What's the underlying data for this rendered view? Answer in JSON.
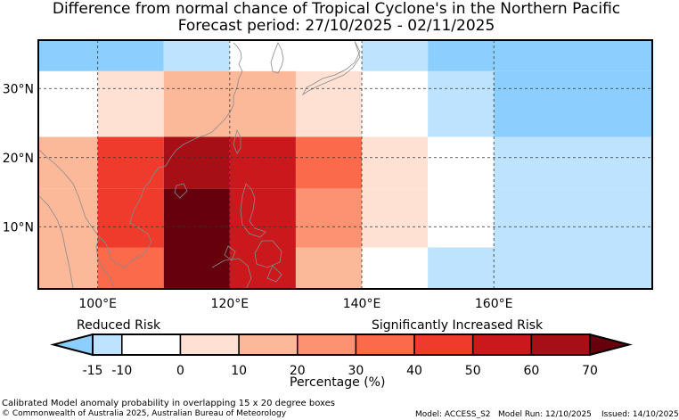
{
  "title": {
    "line1": "Difference from normal chance of Tropical Cyclone's in the Northern Pacific",
    "line2": "Forecast period: 27/10/2025 - 02/11/2025"
  },
  "map": {
    "lon_range": [
      91,
      184
    ],
    "lat_range": [
      1,
      37
    ],
    "lon_ticks": [
      {
        "value": 100,
        "label": "100°E"
      },
      {
        "value": 120,
        "label": "120°E"
      },
      {
        "value": 140,
        "label": "140°E"
      },
      {
        "value": 160,
        "label": "160°E"
      }
    ],
    "lat_ticks": [
      {
        "value": 10,
        "label": "10°N"
      },
      {
        "value": 20,
        "label": "20°N"
      },
      {
        "value": 30,
        "label": "30°N"
      }
    ],
    "grid_lines": "dashed",
    "cells": [
      {
        "lon0": 91,
        "lon1": 110,
        "lat0": 32.5,
        "lat1": 37,
        "cls": 0
      },
      {
        "lon0": 110,
        "lon1": 120,
        "lat0": 32.5,
        "lat1": 37,
        "cls": 1
      },
      {
        "lon0": 120,
        "lon1": 140,
        "lat0": 32.5,
        "lat1": 37,
        "cls": 2
      },
      {
        "lon0": 140,
        "lon1": 150,
        "lat0": 32.5,
        "lat1": 37,
        "cls": 1
      },
      {
        "lon0": 150,
        "lon1": 184,
        "lat0": 32.5,
        "lat1": 37,
        "cls": 0
      },
      {
        "lon0": 91,
        "lon1": 100,
        "lat0": 23,
        "lat1": 32.5,
        "cls": 2
      },
      {
        "lon0": 100,
        "lon1": 110,
        "lat0": 23,
        "lat1": 32.5,
        "cls": 3
      },
      {
        "lon0": 110,
        "lon1": 130,
        "lat0": 23,
        "lat1": 32.5,
        "cls": 4
      },
      {
        "lon0": 130,
        "lon1": 140,
        "lat0": 23,
        "lat1": 32.5,
        "cls": 3
      },
      {
        "lon0": 140,
        "lon1": 150,
        "lat0": 23,
        "lat1": 32.5,
        "cls": 2
      },
      {
        "lon0": 150,
        "lon1": 160,
        "lat0": 23,
        "lat1": 32.5,
        "cls": 1
      },
      {
        "lon0": 160,
        "lon1": 184,
        "lat0": 23,
        "lat1": 32.5,
        "cls": 0
      },
      {
        "lon0": 91,
        "lon1": 100,
        "lat0": 15.5,
        "lat1": 23,
        "cls": 4
      },
      {
        "lon0": 100,
        "lon1": 110,
        "lat0": 15.5,
        "lat1": 23,
        "cls": 7
      },
      {
        "lon0": 110,
        "lon1": 120,
        "lat0": 15.5,
        "lat1": 23,
        "cls": 9
      },
      {
        "lon0": 120,
        "lon1": 130,
        "lat0": 15.5,
        "lat1": 23,
        "cls": 8
      },
      {
        "lon0": 130,
        "lon1": 140,
        "lat0": 15.5,
        "lat1": 23,
        "cls": 6
      },
      {
        "lon0": 140,
        "lon1": 150,
        "lat0": 15.5,
        "lat1": 23,
        "cls": 3
      },
      {
        "lon0": 150,
        "lon1": 160,
        "lat0": 15.5,
        "lat1": 23,
        "cls": 2
      },
      {
        "lon0": 160,
        "lon1": 184,
        "lat0": 15.5,
        "lat1": 23,
        "cls": 1
      },
      {
        "lon0": 91,
        "lon1": 100,
        "lat0": 7,
        "lat1": 15.5,
        "cls": 4
      },
      {
        "lon0": 100,
        "lon1": 110,
        "lat0": 7,
        "lat1": 15.5,
        "cls": 7
      },
      {
        "lon0": 110,
        "lon1": 120,
        "lat0": 7,
        "lat1": 15.5,
        "cls": 10
      },
      {
        "lon0": 120,
        "lon1": 130,
        "lat0": 7,
        "lat1": 15.5,
        "cls": 8
      },
      {
        "lon0": 130,
        "lon1": 140,
        "lat0": 7,
        "lat1": 15.5,
        "cls": 5
      },
      {
        "lon0": 140,
        "lon1": 150,
        "lat0": 7,
        "lat1": 15.5,
        "cls": 3
      },
      {
        "lon0": 150,
        "lon1": 160,
        "lat0": 7,
        "lat1": 15.5,
        "cls": 2
      },
      {
        "lon0": 160,
        "lon1": 184,
        "lat0": 7,
        "lat1": 15.5,
        "cls": 1
      },
      {
        "lon0": 91,
        "lon1": 100,
        "lat0": 1,
        "lat1": 7,
        "cls": 4
      },
      {
        "lon0": 100,
        "lon1": 110,
        "lat0": 1,
        "lat1": 7,
        "cls": 6
      },
      {
        "lon0": 110,
        "lon1": 120,
        "lat0": 1,
        "lat1": 7,
        "cls": 10
      },
      {
        "lon0": 120,
        "lon1": 130,
        "lat0": 1,
        "lat1": 7,
        "cls": 8
      },
      {
        "lon0": 130,
        "lon1": 140,
        "lat0": 1,
        "lat1": 7,
        "cls": 4
      },
      {
        "lon0": 140,
        "lon1": 150,
        "lat0": 1,
        "lat1": 7,
        "cls": 2
      },
      {
        "lon0": 150,
        "lon1": 184,
        "lat0": 1,
        "lat1": 7,
        "cls": 1
      }
    ]
  },
  "legend": {
    "palette": [
      "#8ccfff",
      "#bde3ff",
      "#ffffff",
      "#ffe1d4",
      "#fcb99a",
      "#fc9272",
      "#fb6a4a",
      "#ef3b2c",
      "#cb181d",
      "#a50f15",
      "#67000d"
    ],
    "boundaries": [
      -15,
      -10,
      0,
      10,
      20,
      30,
      40,
      50,
      60,
      70
    ],
    "reduced_label": "Reduced Risk",
    "increased_label": "Significantly Increased Risk",
    "axis_label": "Percentage (%)"
  },
  "footer": {
    "method": "Calibrated Model anomaly probability in overlapping 15 x 20 degree boxes",
    "copyright": "© Commonwealth of Australia 2025, Australian Bureau of Meteorology",
    "model": "Model: ACCESS_S2",
    "model_run": "Model Run: 12/10/2025",
    "issued": "Issued: 14/10/2025"
  }
}
